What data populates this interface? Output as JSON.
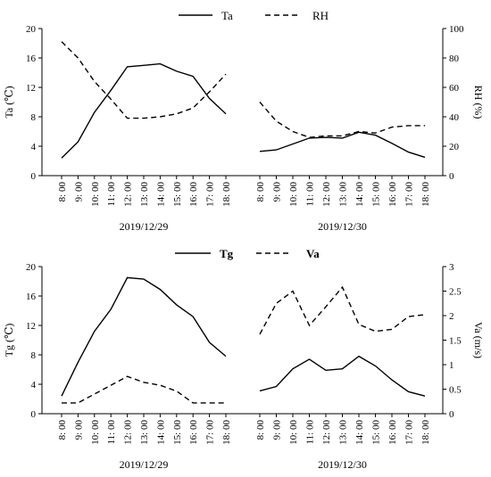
{
  "chart_data": [
    {
      "type": "line",
      "x_categories": [
        "8: 00",
        "9: 00",
        "10: 00",
        "11: 00",
        "12: 00",
        "13: 00",
        "14: 00",
        "15: 00",
        "16: 00",
        "17: 00",
        "18: 00"
      ],
      "groups": [
        "2019/12/29",
        "2019/12/30"
      ],
      "left_axis": {
        "label": "Ta (℃)",
        "ylim": [
          0,
          20
        ],
        "ticks": [
          "0",
          "4",
          "8",
          "12",
          "16",
          "20"
        ]
      },
      "right_axis": {
        "label": "RH (%)",
        "ylim": [
          0,
          100
        ],
        "ticks": [
          "0",
          "20",
          "40",
          "60",
          "80",
          "100"
        ]
      },
      "series": [
        {
          "name": "Ta",
          "axis": "left",
          "style": "solid",
          "values": [
            [
              2.4,
              4.6,
              8.6,
              11.6,
              14.8,
              15.0,
              15.2,
              14.2,
              13.5,
              10.5,
              8.4
            ],
            [
              3.3,
              3.5,
              4.3,
              5.1,
              5.2,
              5.1,
              5.9,
              5.5,
              4.4,
              3.2,
              2.5
            ]
          ]
        },
        {
          "name": "RH",
          "axis": "right",
          "style": "dashed",
          "values": [
            [
              91,
              80,
              64,
              52,
              39,
              39,
              40,
              42,
              46,
              57,
              69
            ],
            [
              50,
              37,
              30,
              26,
              27,
              27,
              30,
              29,
              33,
              34,
              34
            ]
          ]
        }
      ]
    },
    {
      "type": "line",
      "x_categories": [
        "8: 00",
        "9: 00",
        "10: 00",
        "11: 00",
        "12: 00",
        "13: 00",
        "14: 00",
        "15: 00",
        "16: 00",
        "17: 00",
        "18: 00"
      ],
      "groups": [
        "2019/12/29",
        "2019/12/30"
      ],
      "left_axis": {
        "label": "Tg (℃)",
        "ylim": [
          0,
          20
        ],
        "ticks": [
          "0",
          "4",
          "8",
          "12",
          "16",
          "20"
        ]
      },
      "right_axis": {
        "label": "Va (m/s)",
        "ylim": [
          0,
          3
        ],
        "ticks": [
          "0",
          "0.5",
          "1",
          "1.5",
          "2",
          "2.5",
          "3"
        ]
      },
      "series": [
        {
          "name": "Tg",
          "axis": "left",
          "style": "solid",
          "values": [
            [
              2.4,
              7.0,
              11.2,
              14.2,
              18.5,
              18.3,
              16.9,
              14.8,
              13.2,
              9.7,
              7.8
            ],
            [
              3.1,
              3.7,
              6.1,
              7.4,
              5.9,
              6.1,
              7.8,
              6.5,
              4.6,
              3.0,
              2.4
            ]
          ]
        },
        {
          "name": "Va",
          "axis": "right",
          "style": "dashed",
          "values": [
            [
              0.22,
              0.22,
              0.4,
              0.58,
              0.76,
              0.64,
              0.58,
              0.46,
              0.22,
              0.22
            ],
            [
              1.62,
              2.25,
              2.5,
              1.8,
              2.18,
              2.58,
              1.82,
              1.68,
              1.72,
              1.98,
              2.02
            ]
          ],
          "x_indices": [
            [
              0,
              1,
              2,
              3,
              4,
              5,
              6,
              7,
              8,
              10
            ],
            [
              0,
              1,
              2,
              3,
              4,
              5,
              6,
              7,
              8,
              9,
              10
            ]
          ]
        }
      ]
    }
  ]
}
